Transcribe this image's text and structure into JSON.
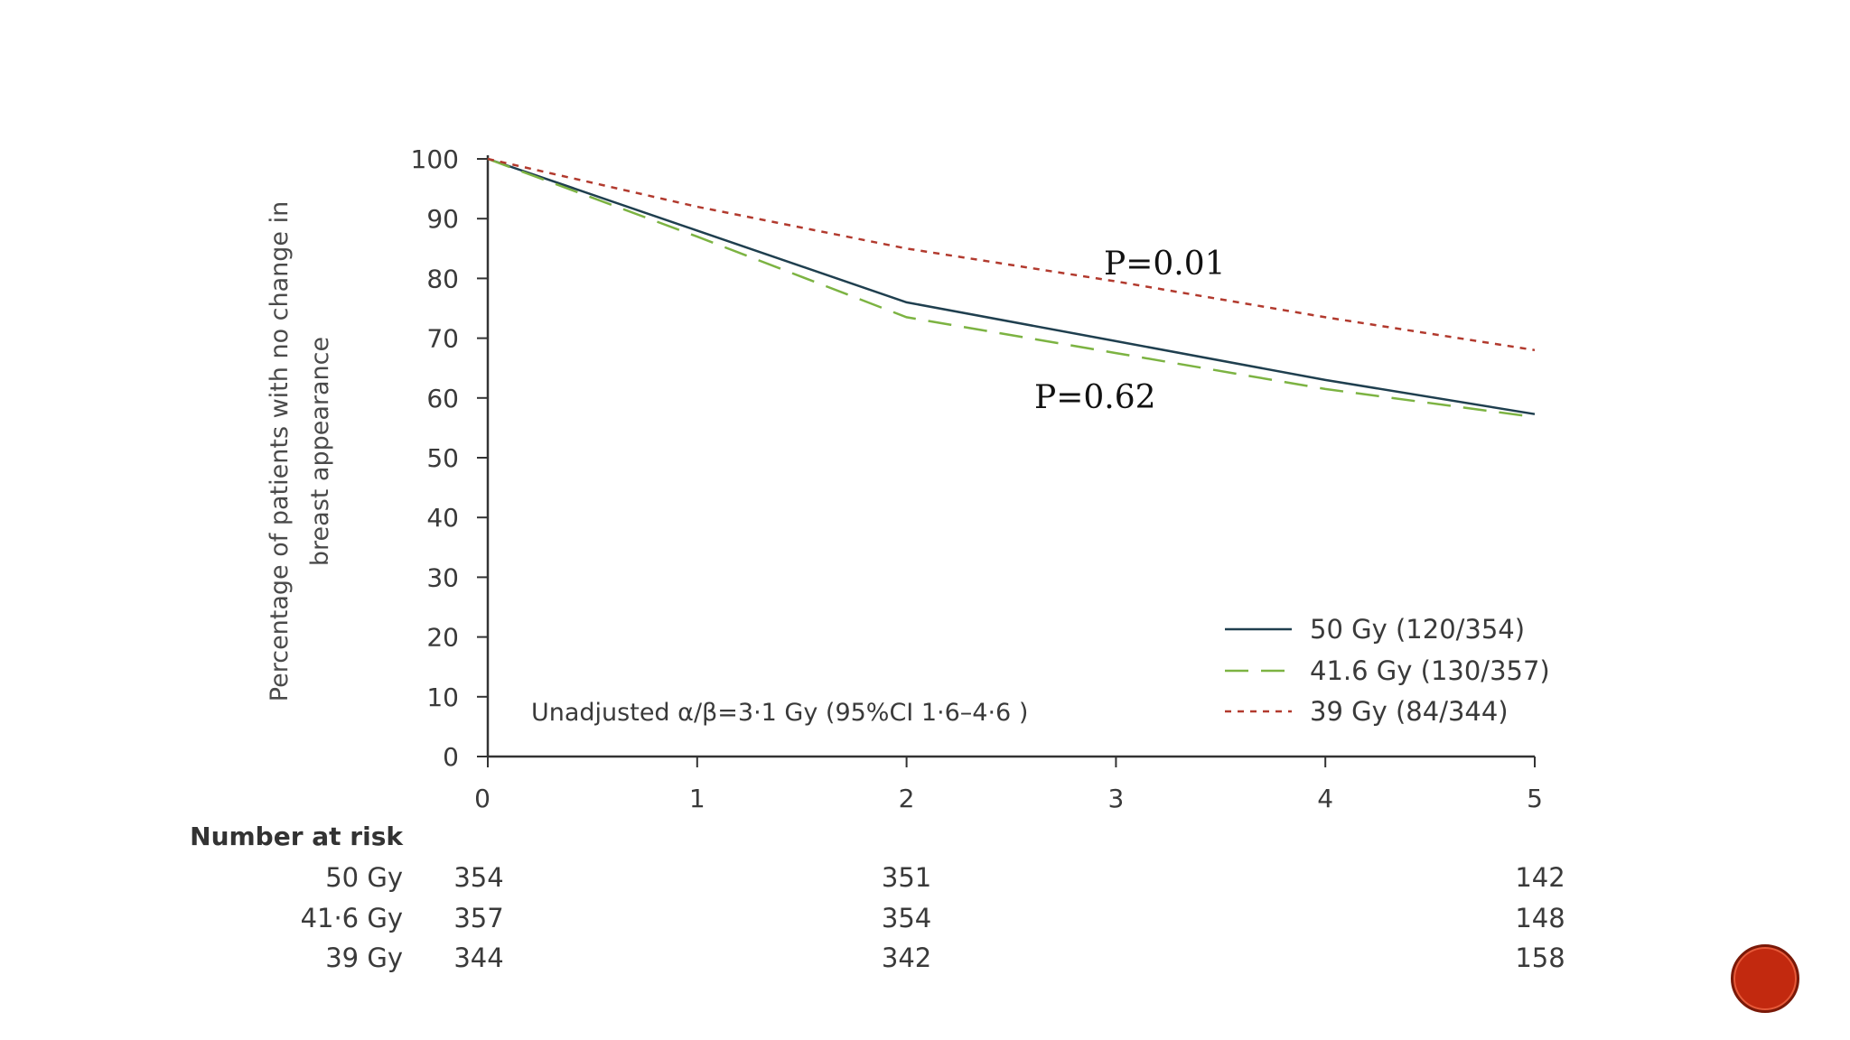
{
  "chart_data": {
    "type": "line",
    "x": [
      0,
      1,
      2,
      3,
      4,
      5
    ],
    "xlim": [
      0,
      5
    ],
    "ylim": [
      0,
      100
    ],
    "yticks": [
      0,
      10,
      20,
      30,
      40,
      50,
      60,
      70,
      80,
      90,
      100
    ],
    "xticks": [
      "0",
      "1",
      "2",
      "3",
      "4",
      "5"
    ],
    "ylabel_line1": "Percentage of patients with no change in",
    "ylabel_line2": "breast appearance",
    "series": [
      {
        "name": "50 Gy (120/354)",
        "values": [
          100,
          88,
          76,
          69.5,
          63,
          57.3
        ],
        "color": "#1f3f4f",
        "style": "solid"
      },
      {
        "name": "41.6 Gy (130/357)",
        "values": [
          100,
          87,
          73.5,
          67.5,
          61.5,
          56.8
        ],
        "color": "#7cb342",
        "style": "dashed"
      },
      {
        "name": "39 Gy (84/344)",
        "values": [
          100,
          92,
          85,
          79.5,
          73.5,
          68
        ],
        "color": "#b23a2e",
        "style": "dotted"
      }
    ],
    "annotations": {
      "p_upper": "P=0.01",
      "p_lower": "P=0.62",
      "inner_note": "Unadjusted α/β=3·1 Gy (95%CI 1·6–4·6 )"
    },
    "legend_position": "bottom-right",
    "grid": false
  },
  "risk_table": {
    "title": "Number at risk",
    "columns_x": [
      0,
      2,
      5
    ],
    "rows": [
      {
        "label": "50 Gy",
        "values": [
          "354",
          "351",
          "142"
        ]
      },
      {
        "label": "41·6 Gy",
        "values": [
          "357",
          "354",
          "148"
        ]
      },
      {
        "label": "39 Gy",
        "values": [
          "344",
          "342",
          "158"
        ]
      }
    ]
  },
  "slide_button_color": "#c2290f"
}
